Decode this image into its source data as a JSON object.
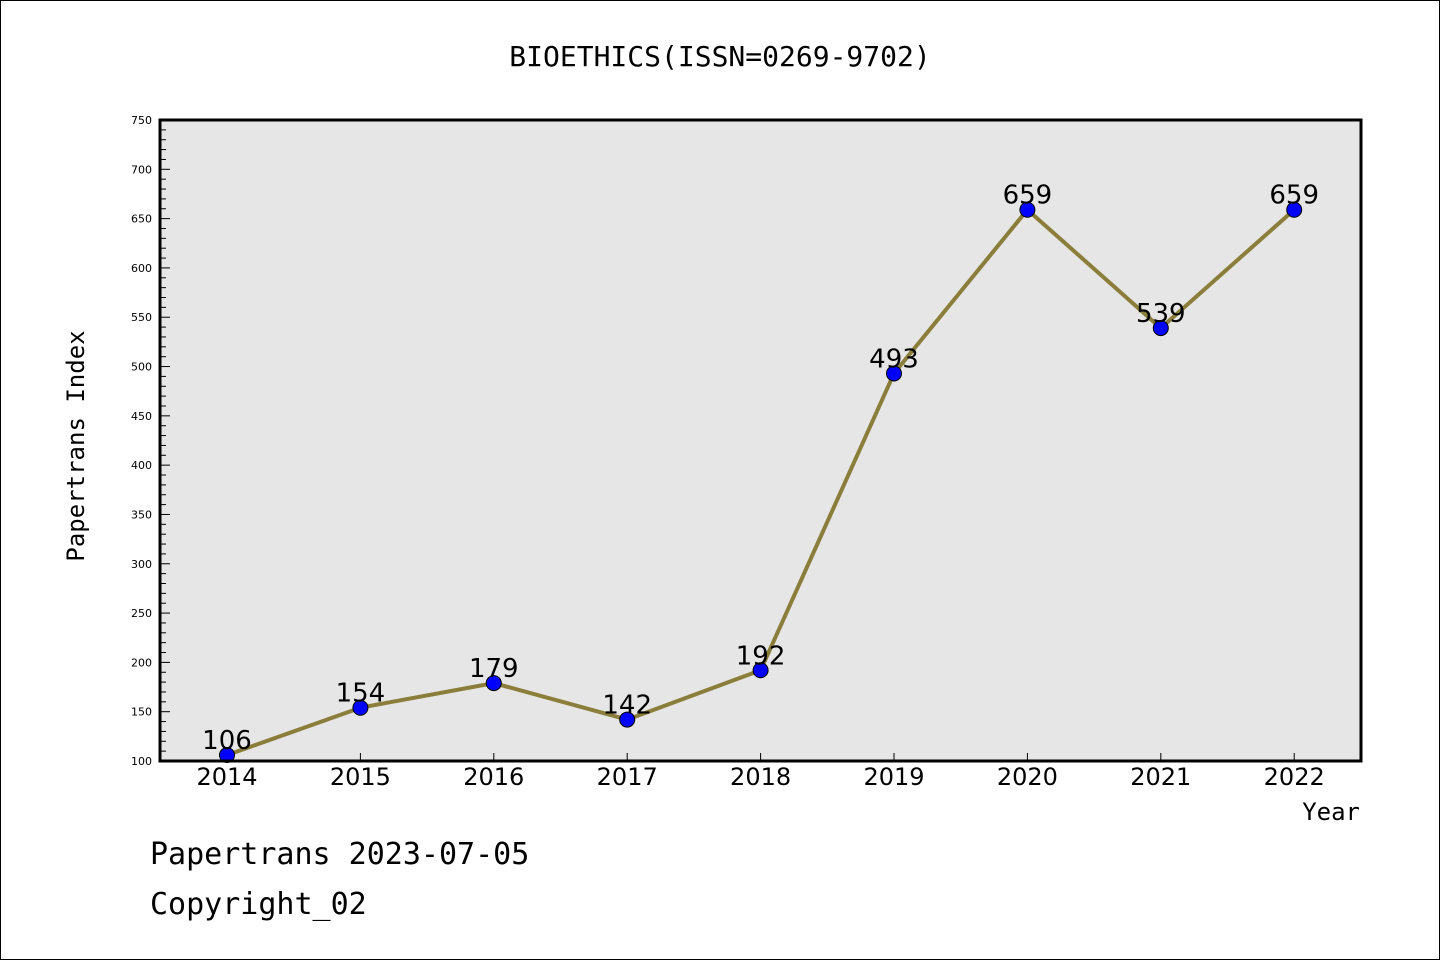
{
  "chart_data": {
    "type": "line",
    "title": "BIOETHICS(ISSN=0269-9702)",
    "xlabel": "Year",
    "ylabel": "Papertrans Index",
    "categories": [
      "2014",
      "2015",
      "2016",
      "2017",
      "2018",
      "2019",
      "2020",
      "2021",
      "2022"
    ],
    "values": [
      106,
      154,
      179,
      142,
      192,
      493,
      659,
      539,
      659
    ],
    "data_labels": [
      "106",
      "154",
      "179",
      "142",
      "192",
      "493",
      "659",
      "539",
      "659"
    ],
    "ylim": [
      100,
      750
    ],
    "y_ticks": [
      100,
      150,
      200,
      250,
      300,
      350,
      400,
      450,
      500,
      550,
      600,
      650,
      700,
      750
    ],
    "grid": false,
    "colors": {
      "line": "#8B7D3A",
      "marker": "#0000FF",
      "plot_background": "#E6E6E6"
    }
  },
  "footer": {
    "line1": "Papertrans 2023-07-05",
    "line2": "Copyright_02"
  }
}
